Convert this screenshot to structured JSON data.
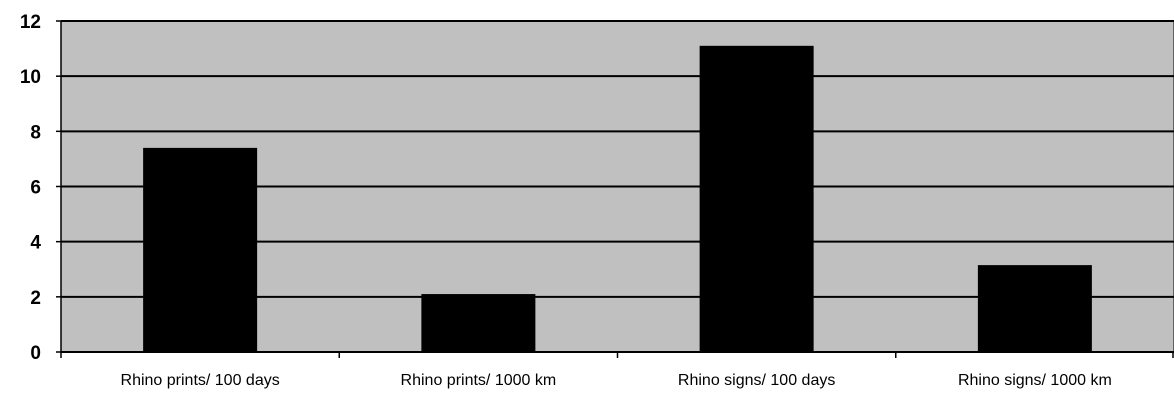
{
  "chart_data": {
    "type": "bar",
    "categories": [
      "Rhino prints/ 100 days",
      "Rhino prints/ 1000 km",
      "Rhino signs/ 100 days",
      "Rhino signs/ 1000 km"
    ],
    "values": [
      7.4,
      2.1,
      11.1,
      3.15
    ],
    "title": "",
    "xlabel": "",
    "ylabel": "",
    "ylim": [
      0,
      12
    ],
    "yticks": [
      "0",
      "2",
      "4",
      "6",
      "8",
      "10",
      "12"
    ],
    "grid": "horizontal",
    "legend": "none",
    "colors": {
      "plot_background": "#c0c0c0",
      "bar": "#000000",
      "gridline": "#000000",
      "axis": "#000000"
    }
  }
}
